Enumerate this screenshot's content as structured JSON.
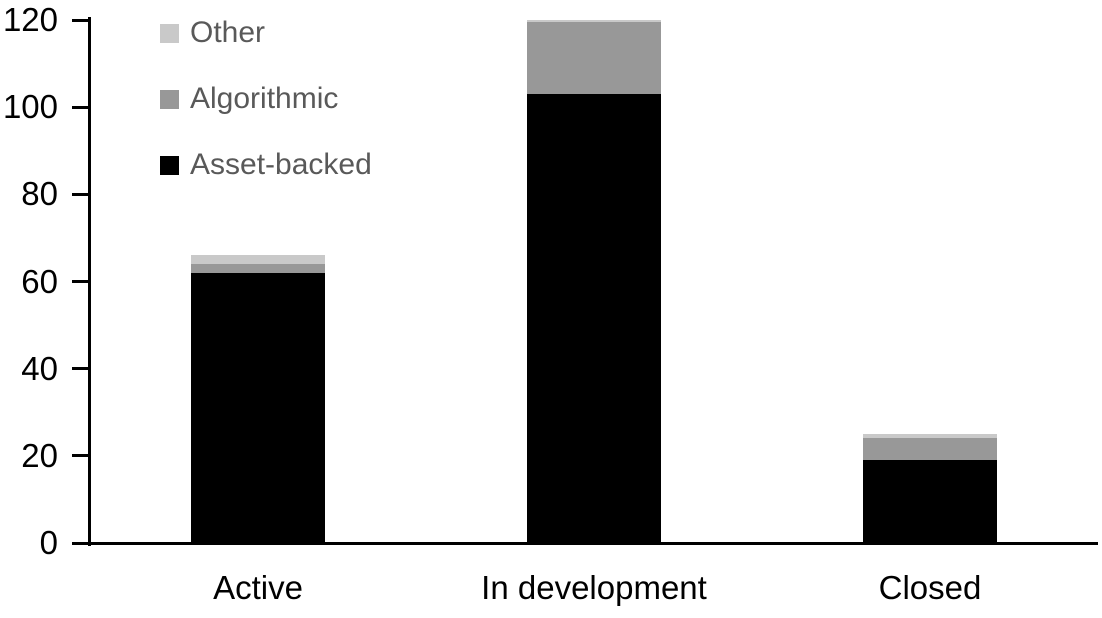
{
  "chart_data": {
    "type": "bar",
    "stacked": true,
    "title": "",
    "xlabel": "",
    "ylabel": "",
    "categories": [
      "Active",
      "In development",
      "Closed"
    ],
    "series": [
      {
        "name": "Asset-backed",
        "color": "#000000",
        "values": [
          62,
          103,
          19
        ]
      },
      {
        "name": "Algorithmic",
        "color": "#989898",
        "values": [
          2,
          17,
          5
        ]
      },
      {
        "name": "Other",
        "color": "#c9c9c9",
        "values": [
          2,
          0,
          1
        ]
      }
    ],
    "totals": [
      66,
      120,
      25
    ],
    "ylim": [
      0,
      120
    ],
    "yticks": [
      0,
      20,
      40,
      60,
      80,
      100,
      120
    ],
    "grid": false,
    "legend_position": "top-left",
    "legend_order": [
      "Other",
      "Algorithmic",
      "Asset-backed"
    ]
  },
  "colors": {
    "axis": "#000000",
    "tick_label_text": "#000000",
    "category_label_text": "#000000",
    "legend_text": "#595959",
    "background": "#ffffff",
    "bar_cap_edge": "#c9c9c9"
  }
}
